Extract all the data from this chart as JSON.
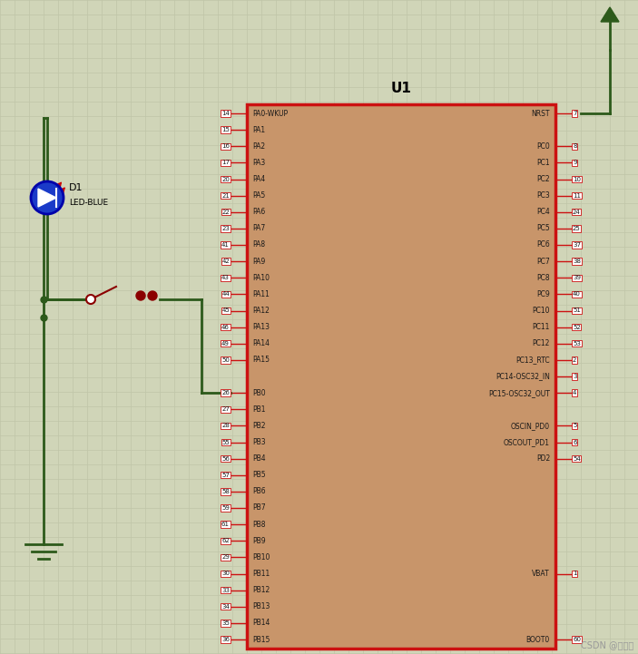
{
  "bg_color": "#d0d5b8",
  "grid_color": "#bfc5a8",
  "chip_color": "#c8956a",
  "chip_border": "#cc1111",
  "title": "U1",
  "left_pins": [
    [
      "14",
      "PA0-WKUP"
    ],
    [
      "15",
      "PA1"
    ],
    [
      "16",
      "PA2"
    ],
    [
      "17",
      "PA3"
    ],
    [
      "20",
      "PA4"
    ],
    [
      "21",
      "PA5"
    ],
    [
      "22",
      "PA6"
    ],
    [
      "23",
      "PA7"
    ],
    [
      "41",
      "PA8"
    ],
    [
      "42",
      "PA9"
    ],
    [
      "43",
      "PA10"
    ],
    [
      "44",
      "PA11"
    ],
    [
      "45",
      "PA12"
    ],
    [
      "46",
      "PA13"
    ],
    [
      "49",
      "PA14"
    ],
    [
      "50",
      "PA15"
    ],
    [
      "",
      ""
    ],
    [
      "26",
      "PB0"
    ],
    [
      "27",
      "PB1"
    ],
    [
      "28",
      "PB2"
    ],
    [
      "55",
      "PB3"
    ],
    [
      "56",
      "PB4"
    ],
    [
      "57",
      "PB5"
    ],
    [
      "58",
      "PB6"
    ],
    [
      "59",
      "PB7"
    ],
    [
      "61",
      "PB8"
    ],
    [
      "62",
      "PB9"
    ],
    [
      "29",
      "PB10"
    ],
    [
      "30",
      "PB11"
    ],
    [
      "33",
      "PB12"
    ],
    [
      "34",
      "PB13"
    ],
    [
      "35",
      "PB14"
    ],
    [
      "36",
      "PB15"
    ]
  ],
  "right_pins": [
    [
      "7",
      "NRST"
    ],
    [
      "",
      ""
    ],
    [
      "8",
      "PC0"
    ],
    [
      "9",
      "PC1"
    ],
    [
      "10",
      "PC2"
    ],
    [
      "11",
      "PC3"
    ],
    [
      "24",
      "PC4"
    ],
    [
      "25",
      "PC5"
    ],
    [
      "37",
      "PC6"
    ],
    [
      "38",
      "PC7"
    ],
    [
      "39",
      "PC8"
    ],
    [
      "40",
      "PC9"
    ],
    [
      "51",
      "PC10"
    ],
    [
      "52",
      "PC11"
    ],
    [
      "53",
      "PC12"
    ],
    [
      "2",
      "PC13_RTC"
    ],
    [
      "3",
      "PC14-OSC32_IN"
    ],
    [
      "4",
      "PC15-OSC32_OUT"
    ],
    [
      "",
      ""
    ],
    [
      "5",
      "OSCIN_PD0"
    ],
    [
      "6",
      "OSCOUT_PD1"
    ],
    [
      "54",
      "PD2"
    ],
    [
      "",
      ""
    ],
    [
      "",
      ""
    ],
    [
      "",
      ""
    ],
    [
      "",
      ""
    ],
    [
      "",
      ""
    ],
    [
      "",
      ""
    ],
    [
      "1",
      "VBAT"
    ],
    [
      "",
      ""
    ],
    [
      "",
      ""
    ],
    [
      "",
      ""
    ],
    [
      "60",
      "BOOT0"
    ]
  ],
  "wire_color": "#2d5a1b",
  "res_color": "#8b0000",
  "watermark": "CSDN @赵鸣对"
}
